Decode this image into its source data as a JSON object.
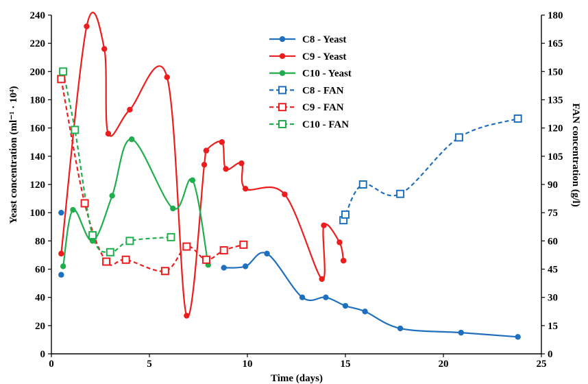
{
  "chart_data": {
    "type": "line",
    "xlabel": "Time (days)",
    "ylabel": "Yeast concentration (ml⁻¹ · 10⁴)",
    "y2label": "FAN concentration (g/l)",
    "xlim": [
      0,
      25
    ],
    "ylim": [
      0,
      240
    ],
    "y2lim": [
      0,
      180
    ],
    "xticks": [
      "0",
      "5",
      "10",
      "15",
      "20",
      "25"
    ],
    "yticks": [
      "0",
      "20",
      "40",
      "60",
      "80",
      "100",
      "120",
      "140",
      "160",
      "180",
      "200",
      "220",
      "240"
    ],
    "y2ticks": [
      "0",
      "15",
      "30",
      "45",
      "60",
      "75",
      "90",
      "105",
      "120",
      "135",
      "150",
      "165",
      "180"
    ],
    "legend_position": "top-center",
    "series": [
      {
        "name": "C8 - Yeast",
        "color": "#1f6fbf",
        "axis": "left",
        "style": "solid",
        "marker": "filled-circle",
        "segments": [
          [
            [
              0.5,
              56
            ]
          ],
          [
            [
              0.5,
              100
            ]
          ],
          [
            [
              8.8,
              61
            ],
            [
              9.9,
              62
            ],
            [
              11.0,
              71
            ],
            [
              12.8,
              40
            ],
            [
              14.0,
              40
            ],
            [
              15.0,
              34
            ],
            [
              16.0,
              30
            ],
            [
              17.8,
              18
            ],
            [
              20.9,
              15
            ],
            [
              23.8,
              12
            ]
          ]
        ]
      },
      {
        "name": "C9 - Yeast",
        "color": "#ee1c1c",
        "axis": "left",
        "style": "solid",
        "marker": "filled-circle",
        "segments": [
          [
            [
              0.5,
              71
            ],
            [
              1.8,
              232
            ],
            [
              2.7,
              216
            ],
            [
              2.9,
              156
            ],
            [
              4.0,
              173
            ],
            [
              5.9,
              196
            ],
            [
              6.9,
              27
            ],
            [
              7.8,
              134
            ],
            [
              7.9,
              144
            ],
            [
              8.7,
              150
            ],
            [
              8.9,
              131
            ],
            [
              9.7,
              135
            ],
            [
              9.9,
              117
            ],
            [
              11.9,
              113
            ],
            [
              13.8,
              53
            ],
            [
              13.9,
              91
            ],
            [
              14.7,
              79
            ],
            [
              14.9,
              66
            ]
          ]
        ]
      },
      {
        "name": "C10 - Yeast",
        "color": "#1fae4b",
        "axis": "left",
        "style": "solid",
        "marker": "filled-circle",
        "segments": [
          [
            [
              0.6,
              62
            ],
            [
              1.1,
              102
            ],
            [
              2.1,
              80
            ],
            [
              3.1,
              112
            ],
            [
              4.1,
              152
            ],
            [
              6.2,
              103
            ],
            [
              7.2,
              123
            ],
            [
              8.0,
              63
            ]
          ]
        ]
      },
      {
        "name": "C8 - FAN",
        "color": "#1f6fbf",
        "axis": "right",
        "style": "dashed",
        "marker": "open-square",
        "segments": [
          [
            [
              14.9,
              71
            ],
            [
              15.0,
              74
            ],
            [
              15.9,
              90
            ],
            [
              17.8,
              85
            ],
            [
              20.8,
              115
            ],
            [
              23.8,
              125
            ]
          ]
        ]
      },
      {
        "name": "C9 - FAN",
        "color": "#ee1c1c",
        "axis": "right",
        "style": "dashed",
        "marker": "open-square",
        "segments": [
          [
            [
              0.5,
              146
            ],
            [
              1.7,
              80
            ],
            [
              2.8,
              49
            ],
            [
              3.8,
              50
            ],
            [
              5.8,
              44
            ],
            [
              6.9,
              57
            ],
            [
              7.9,
              50
            ],
            [
              8.8,
              55
            ],
            [
              9.8,
              58
            ]
          ]
        ]
      },
      {
        "name": "C10 - FAN",
        "color": "#1fae4b",
        "axis": "right",
        "style": "dashed",
        "marker": "open-square",
        "segments": [
          [
            [
              0.6,
              150
            ],
            [
              1.2,
              119
            ],
            [
              2.1,
              63
            ],
            [
              3.0,
              54
            ],
            [
              4.0,
              60
            ],
            [
              6.1,
              62
            ]
          ]
        ]
      }
    ]
  }
}
